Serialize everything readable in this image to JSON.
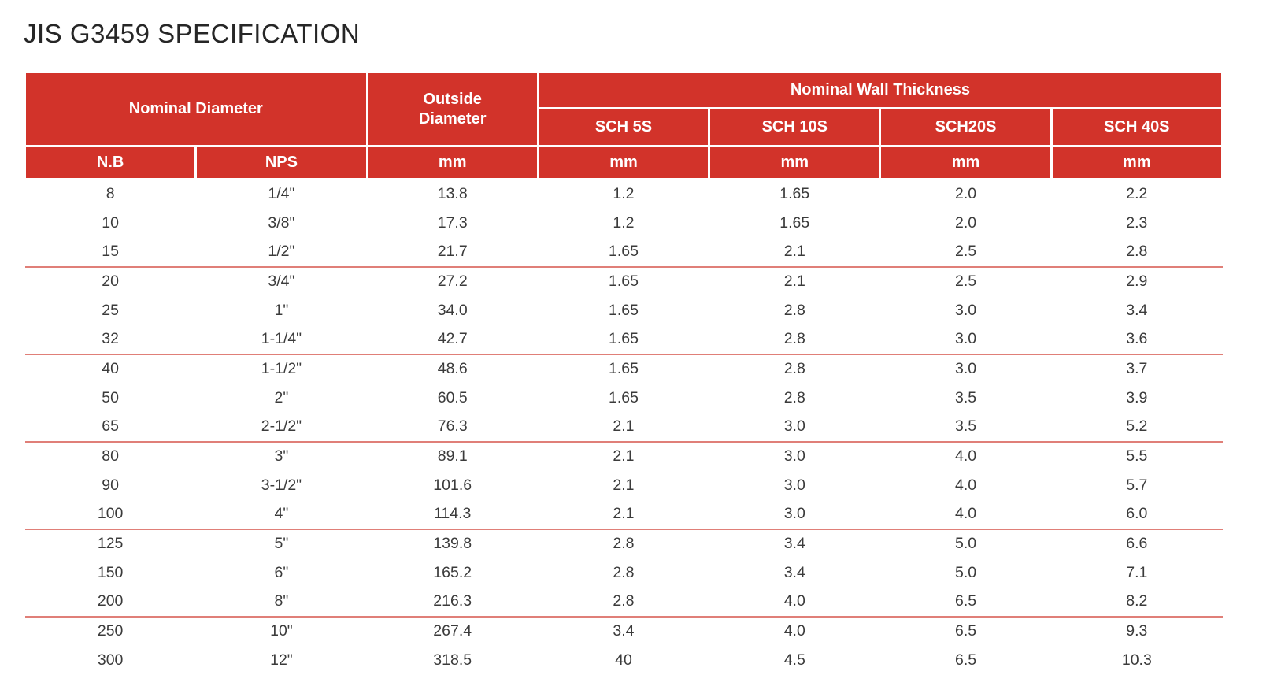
{
  "page": {
    "title": "JIS G3459 SPECIFICATION"
  },
  "colors": {
    "header_red": "#d2332a",
    "header_text": "#ffffff",
    "body_text": "#3b3b3b",
    "divider_pink": "#e07f78",
    "title_text": "#262626"
  },
  "table": {
    "header": {
      "nominal_diameter": "Nominal Diameter",
      "outside_diameter": "Outside\nDiameter",
      "nominal_wall_thickness": "Nominal Wall Thickness",
      "sch_columns": [
        "SCH 5S",
        "SCH 10S",
        "SCH20S",
        "SCH 40S"
      ],
      "unit_row": [
        "N.B",
        "NPS",
        "mm",
        "mm",
        "mm",
        "mm",
        "mm"
      ]
    },
    "rows": [
      [
        "8",
        "1/4\"",
        "13.8",
        "1.2",
        "1.65",
        "2.0",
        "2.2"
      ],
      [
        "10",
        "3/8\"",
        "17.3",
        "1.2",
        "1.65",
        "2.0",
        "2.3"
      ],
      [
        "15",
        "1/2\"",
        "21.7",
        "1.65",
        "2.1",
        "2.5",
        "2.8"
      ],
      [
        "20",
        "3/4\"",
        "27.2",
        "1.65",
        "2.1",
        "2.5",
        "2.9"
      ],
      [
        "25",
        "1\"",
        "34.0",
        "1.65",
        "2.8",
        "3.0",
        "3.4"
      ],
      [
        "32",
        "1-1/4\"",
        "42.7",
        "1.65",
        "2.8",
        "3.0",
        "3.6"
      ],
      [
        "40",
        "1-1/2\"",
        "48.6",
        "1.65",
        "2.8",
        "3.0",
        "3.7"
      ],
      [
        "50",
        "2\"",
        "60.5",
        "1.65",
        "2.8",
        "3.5",
        "3.9"
      ],
      [
        "65",
        "2-1/2\"",
        "76.3",
        "2.1",
        "3.0",
        "3.5",
        "5.2"
      ],
      [
        "80",
        "3\"",
        "89.1",
        "2.1",
        "3.0",
        "4.0",
        "5.5"
      ],
      [
        "90",
        "3-1/2\"",
        "101.6",
        "2.1",
        "3.0",
        "4.0",
        "5.7"
      ],
      [
        "100",
        "4\"",
        "114.3",
        "2.1",
        "3.0",
        "4.0",
        "6.0"
      ],
      [
        "125",
        "5\"",
        "139.8",
        "2.8",
        "3.4",
        "5.0",
        "6.6"
      ],
      [
        "150",
        "6\"",
        "165.2",
        "2.8",
        "3.4",
        "5.0",
        "7.1"
      ],
      [
        "200",
        "8\"",
        "216.3",
        "2.8",
        "4.0",
        "6.5",
        "8.2"
      ],
      [
        "250",
        "10\"",
        "267.4",
        "3.4",
        "4.0",
        "6.5",
        "9.3"
      ],
      [
        "300",
        "12\"",
        "318.5",
        "40",
        "4.5",
        "6.5",
        "10.3"
      ]
    ],
    "divider_after_rows": [
      2,
      5,
      8,
      11,
      14
    ]
  }
}
